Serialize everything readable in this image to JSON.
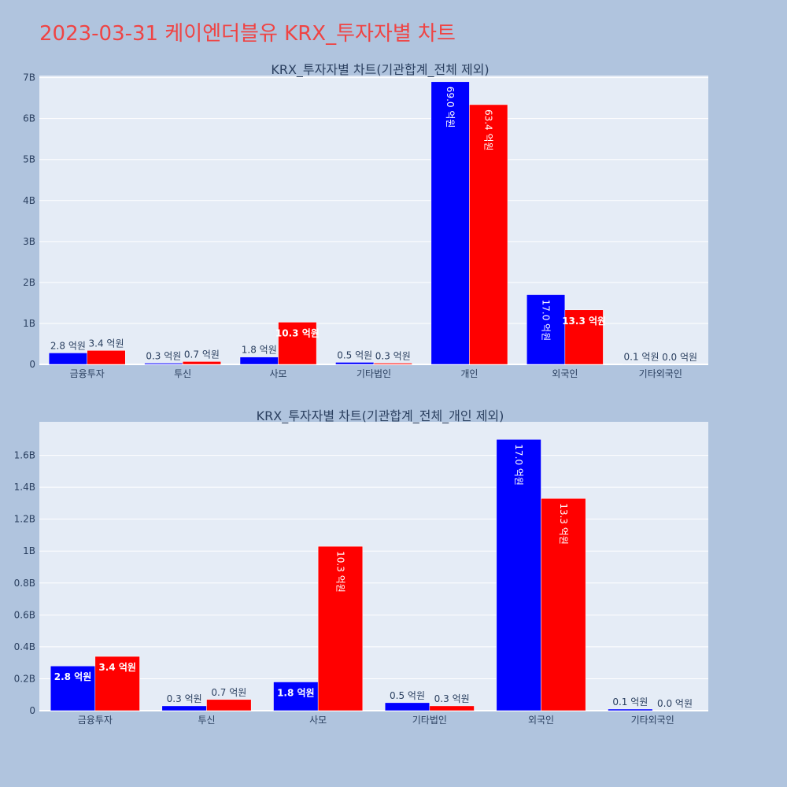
{
  "page": {
    "title": "2023-03-31 케이엔더블유 KRX_투자자별 차트"
  },
  "colors": {
    "page_bg": "#b0c4de",
    "plot_bg": "#e5ecf6",
    "grid": "#ffffff",
    "series_1": "#0000ff",
    "series_2": "#ff0000",
    "title": "#ef4444",
    "text": "#2a3f5f"
  },
  "chart_data": [
    {
      "type": "bar",
      "title": "KRX_투자자별 차트(기관합계_전체 제외)",
      "categories": [
        "금융투자",
        "투신",
        "사모",
        "기타법인",
        "개인",
        "외국인",
        "기타외국인"
      ],
      "series": [
        {
          "values": [
            0.28,
            0.03,
            0.18,
            0.05,
            6.9,
            1.7,
            0.01
          ],
          "labels": [
            "2.8 억원",
            "0.3 억원",
            "1.8 억원",
            "0.5 억원",
            "69.0 억원",
            "17.0 억원",
            "0.1 억원"
          ]
        },
        {
          "values": [
            0.34,
            0.07,
            1.03,
            0.03,
            6.34,
            1.33,
            0.0
          ],
          "labels": [
            "3.4 억원",
            "0.7 억원",
            "10.3 억원",
            "0.3 억원",
            "63.4 억원",
            "13.3 억원",
            "0.0 억원"
          ]
        }
      ],
      "ylim": [
        0,
        7.05
      ],
      "yticks": [
        0,
        1,
        2,
        3,
        4,
        5,
        6,
        7
      ],
      "ytick_labels": [
        "0",
        "1B",
        "2B",
        "3B",
        "4B",
        "5B",
        "6B",
        "7B"
      ],
      "grid": true
    },
    {
      "type": "bar",
      "title": "KRX_투자자별 차트(기관합계_전체_개인 제외)",
      "categories": [
        "금융투자",
        "투신",
        "사모",
        "기타법인",
        "외국인",
        "기타외국인"
      ],
      "series": [
        {
          "values": [
            0.28,
            0.03,
            0.18,
            0.05,
            1.7,
            0.01
          ],
          "labels": [
            "2.8 억원",
            "0.3 억원",
            "1.8 억원",
            "0.5 억원",
            "17.0 억원",
            "0.1 억원"
          ]
        },
        {
          "values": [
            0.34,
            0.07,
            1.03,
            0.03,
            1.33,
            0.0
          ],
          "labels": [
            "3.4 억원",
            "0.7 억원",
            "10.3 억원",
            "0.3 억원",
            "13.3 억원",
            "0.0 억원"
          ]
        }
      ],
      "ylim": [
        0,
        1.81
      ],
      "yticks": [
        0,
        0.2,
        0.4,
        0.6,
        0.8,
        1.0,
        1.2,
        1.4,
        1.6
      ],
      "ytick_labels": [
        "0",
        "0.2B",
        "0.4B",
        "0.6B",
        "0.8B",
        "1B",
        "1.2B",
        "1.4B",
        "1.6B"
      ],
      "grid": true
    }
  ]
}
